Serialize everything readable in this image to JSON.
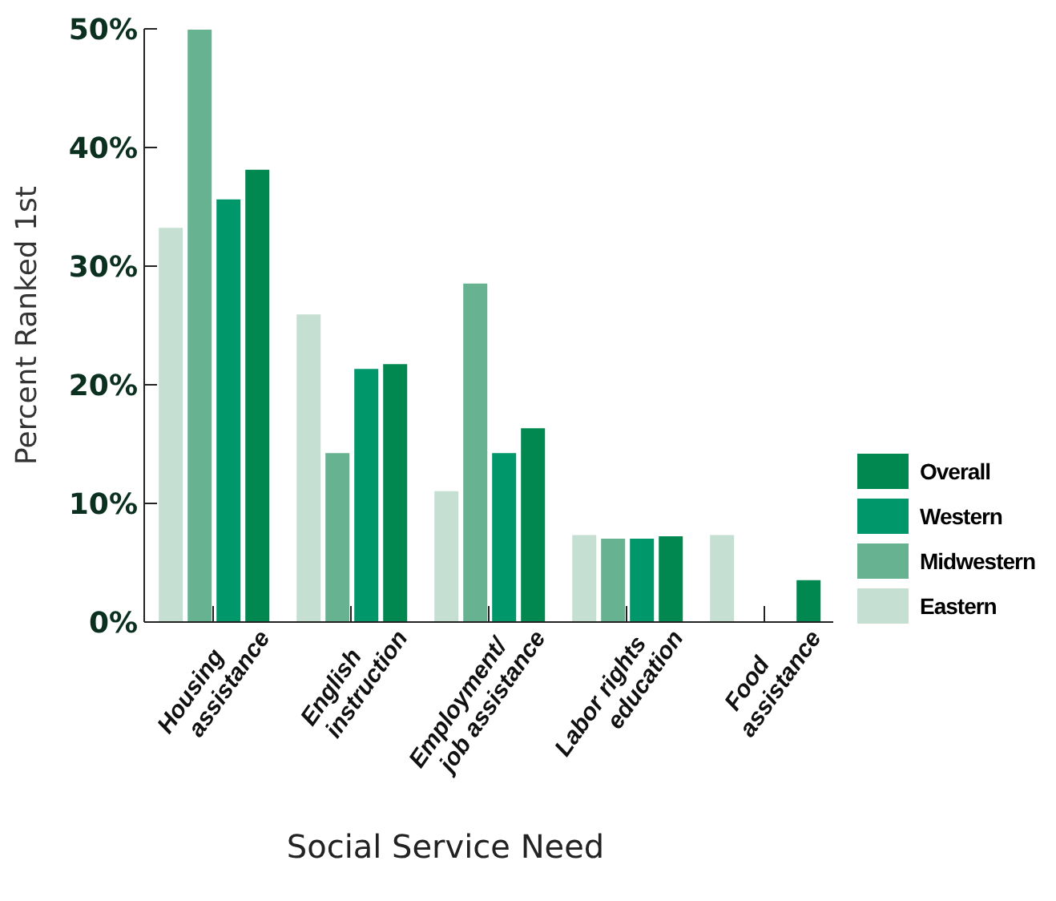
{
  "chart_data": {
    "type": "bar",
    "xlabel": "Social Service Need",
    "ylabel": "Percent Ranked 1st",
    "categories": [
      "Housing\nassistance",
      "English\ninstruction",
      "Employment/\njob assistance",
      "Labor rights\neducation",
      "Food\nassistance"
    ],
    "series": [
      {
        "name": "Eastern",
        "color": "#c5dfd2",
        "values": [
          33.3,
          26.0,
          11.1,
          7.4,
          7.4
        ]
      },
      {
        "name": "Midwestern",
        "color": "#67b291",
        "values": [
          50.0,
          14.3,
          28.6,
          7.1,
          0
        ]
      },
      {
        "name": "Western",
        "color": "#00976b",
        "values": [
          35.7,
          21.4,
          14.3,
          7.1,
          0
        ]
      },
      {
        "name": "Overall",
        "color": "#008850",
        "values": [
          38.2,
          21.8,
          16.4,
          7.3,
          3.6
        ]
      }
    ],
    "ylim": [
      0,
      50
    ],
    "yticks": [
      {
        "value": 0,
        "label": "0%"
      },
      {
        "value": 10,
        "label": "10%"
      },
      {
        "value": 20,
        "label": "20%"
      },
      {
        "value": 30,
        "label": "30%"
      },
      {
        "value": 40,
        "label": "40%"
      },
      {
        "value": 50,
        "label": "50%"
      }
    ],
    "grid": false,
    "legend": "right"
  }
}
